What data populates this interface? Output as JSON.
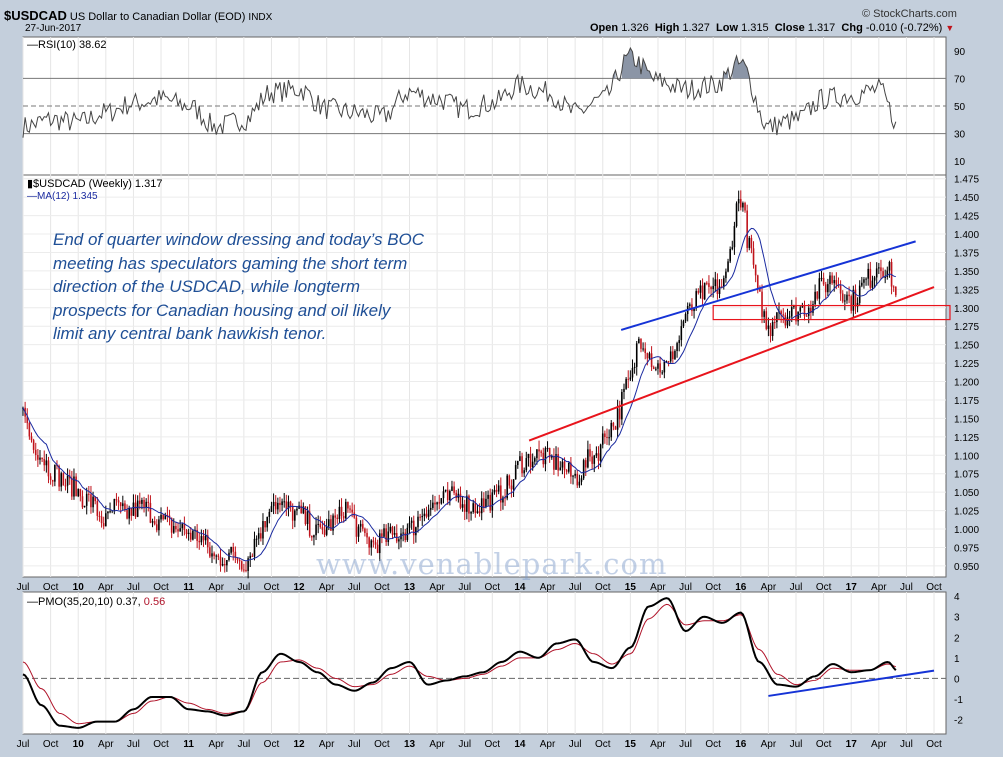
{
  "header": {
    "symbol": "$USDCAD",
    "description": "US Dollar to Canadian Dollar (EOD)",
    "exchange": "INDX",
    "date": "27-Jun-2017",
    "brand": "© StockCharts.com",
    "ohlc": {
      "open_label": "Open",
      "open": "1.326",
      "high_label": "High",
      "high": "1.327",
      "low_label": "Low",
      "low": "1.315",
      "close_label": "Close",
      "close": "1.317",
      "chg_label": "Chg",
      "chg": "-0.010 (-0.72%)"
    }
  },
  "annotation": {
    "lines": [
      "End of quarter window dressing and today’s BOC",
      "meeting has speculators gaming the short term",
      "direction of the USDCAD, while longterm",
      "prospects for Canadian housing and oil likely",
      "limit any central bank hawkish tenor."
    ]
  },
  "watermark": "www.venablepark.com",
  "colors": {
    "price_up": "#000000",
    "price_down": "#c0141c",
    "ma_line": "#1a2aa0",
    "trend_red": "#e8141c",
    "trend_blue": "#1533d6",
    "signal": "#b0142a",
    "panel_bg": "#ffffff",
    "overbought_fill": "#8b95a6"
  },
  "chart_data": [
    {
      "panel": "rsi",
      "type": "line",
      "indicator_label": "RSI(10)",
      "indicator_value": "38.62",
      "ylim": [
        0,
        100
      ],
      "y_ticks": [
        "90",
        "70",
        "50",
        "30",
        "10"
      ],
      "reference_lines": [
        70,
        50,
        30
      ],
      "x": [
        "2009-07",
        "2009-10",
        "2010-01",
        "2010-04",
        "2010-07",
        "2010-10",
        "2011-01",
        "2011-04",
        "2011-07",
        "2011-10",
        "2012-01",
        "2012-04",
        "2012-07",
        "2012-10",
        "2013-01",
        "2013-04",
        "2013-07",
        "2013-10",
        "2014-01",
        "2014-04",
        "2014-07",
        "2014-10",
        "2015-01",
        "2015-04",
        "2015-07",
        "2015-10",
        "2016-01",
        "2016-04",
        "2016-07",
        "2016-10",
        "2017-01",
        "2017-04",
        "2017-06"
      ],
      "values": [
        35,
        40,
        38,
        45,
        52,
        55,
        50,
        35,
        40,
        60,
        62,
        48,
        45,
        42,
        60,
        55,
        48,
        52,
        65,
        60,
        45,
        55,
        85,
        68,
        62,
        65,
        80,
        35,
        40,
        55,
        58,
        62,
        38.62
      ]
    },
    {
      "panel": "price",
      "type": "candlestick",
      "series": [
        {
          "name": "$USDCAD (Weekly)",
          "last": "1.317"
        },
        {
          "name": "MA(12)",
          "last": "1.345"
        }
      ],
      "ylim": [
        0.935,
        1.48
      ],
      "y_ticks": [
        "1.475",
        "1.450",
        "1.425",
        "1.400",
        "1.375",
        "1.350",
        "1.325",
        "1.300",
        "1.275",
        "1.250",
        "1.225",
        "1.200",
        "1.175",
        "1.150",
        "1.125",
        "1.100",
        "1.075",
        "1.050",
        "1.025",
        "1.000",
        "0.975",
        "0.950"
      ],
      "x_tick_labels": [
        "Jul",
        "Oct",
        "10",
        "Apr",
        "Jul",
        "Oct",
        "11",
        "Apr",
        "Jul",
        "Oct",
        "12",
        "Apr",
        "Jul",
        "Oct",
        "13",
        "Apr",
        "Jul",
        "Oct",
        "14",
        "Apr",
        "Jul",
        "Oct",
        "15",
        "Apr",
        "Jul",
        "Oct",
        "16",
        "Apr",
        "Jul",
        "Oct",
        "17",
        "Apr",
        "Jul",
        "Oct"
      ],
      "x": [
        "2009-07",
        "2009-08",
        "2009-09",
        "2009-10",
        "2009-12",
        "2010-02",
        "2010-04",
        "2010-05",
        "2010-06",
        "2010-08",
        "2010-10",
        "2010-12",
        "2011-02",
        "2011-04",
        "2011-06",
        "2011-07",
        "2011-09",
        "2011-10",
        "2011-11",
        "2012-01",
        "2012-03",
        "2012-05",
        "2012-06",
        "2012-08",
        "2012-09",
        "2012-11",
        "2013-01",
        "2013-03",
        "2013-05",
        "2013-06",
        "2013-08",
        "2013-10",
        "2013-12",
        "2014-01",
        "2014-03",
        "2014-05",
        "2014-07",
        "2014-09",
        "2014-11",
        "2015-01",
        "2015-02",
        "2015-04",
        "2015-05",
        "2015-06",
        "2015-07",
        "2015-09",
        "2015-11",
        "2016-01",
        "2016-02",
        "2016-03",
        "2016-04",
        "2016-05",
        "2016-06",
        "2016-08",
        "2016-10",
        "2016-11",
        "2017-01",
        "2017-03",
        "2017-04",
        "2017-05",
        "2017-06"
      ],
      "close": [
        1.16,
        1.12,
        1.1,
        1.08,
        1.06,
        1.04,
        1.01,
        1.03,
        1.02,
        1.03,
        1.01,
        1.0,
        0.99,
        0.96,
        0.965,
        0.955,
        1.0,
        1.04,
        1.03,
        1.02,
        0.995,
        1.01,
        1.03,
        0.99,
        0.98,
        0.99,
        1.0,
        1.03,
        1.04,
        1.045,
        1.03,
        1.04,
        1.06,
        1.09,
        1.1,
        1.09,
        1.07,
        1.1,
        1.14,
        1.2,
        1.26,
        1.22,
        1.22,
        1.25,
        1.29,
        1.32,
        1.33,
        1.45,
        1.38,
        1.31,
        1.27,
        1.3,
        1.29,
        1.3,
        1.33,
        1.34,
        1.31,
        1.34,
        1.36,
        1.35,
        1.317
      ],
      "annotations": [
        {
          "type": "trendline",
          "color": "red",
          "from": [
            "2014-02",
            1.12
          ],
          "to": [
            "2017-10",
            1.328
          ]
        },
        {
          "type": "trendline",
          "color": "blue",
          "from": [
            "2014-12",
            1.27
          ],
          "to": [
            "2017-08",
            1.39
          ]
        },
        {
          "type": "support_zone",
          "color": "red",
          "from_date": "2015-10",
          "y_range": [
            1.284,
            1.303
          ]
        }
      ]
    },
    {
      "panel": "pmo",
      "type": "line",
      "indicator_label": "PMO(35,20,10)",
      "indicator_value": "0.37",
      "signal_value": "0.56",
      "ylim": [
        -2.7,
        4.2
      ],
      "y_ticks": [
        "4",
        "3",
        "2",
        "1",
        "0",
        "-1",
        "-2"
      ],
      "x_tick_labels": [
        "Jul",
        "Oct",
        "10",
        "Apr",
        "Jul",
        "Oct",
        "11",
        "Apr",
        "Jul",
        "Oct",
        "12",
        "Apr",
        "Jul",
        "Oct",
        "13",
        "Apr",
        "Jul",
        "Oct",
        "14",
        "Apr",
        "Jul",
        "Oct",
        "15",
        "Apr",
        "Jul",
        "Oct",
        "16",
        "Apr",
        "Jul",
        "Oct",
        "17",
        "Apr",
        "Jul",
        "Oct"
      ],
      "x": [
        "2009-07",
        "2009-09",
        "2009-11",
        "2010-01",
        "2010-03",
        "2010-05",
        "2010-07",
        "2010-09",
        "2010-11",
        "2011-01",
        "2011-03",
        "2011-05",
        "2011-07",
        "2011-09",
        "2011-11",
        "2012-01",
        "2012-03",
        "2012-05",
        "2012-07",
        "2012-09",
        "2012-11",
        "2013-01",
        "2013-03",
        "2013-05",
        "2013-07",
        "2013-09",
        "2013-11",
        "2014-01",
        "2014-03",
        "2014-05",
        "2014-07",
        "2014-09",
        "2014-11",
        "2015-01",
        "2015-03",
        "2015-05",
        "2015-07",
        "2015-09",
        "2015-11",
        "2016-01",
        "2016-03",
        "2016-05",
        "2016-07",
        "2016-09",
        "2016-11",
        "2017-01",
        "2017-03",
        "2017-05",
        "2017-06"
      ],
      "values": [
        0.2,
        -1.3,
        -2.3,
        -2.4,
        -2.1,
        -2.1,
        -1.5,
        -0.9,
        -0.9,
        -1.5,
        -1.6,
        -1.8,
        -1.6,
        0.3,
        1.2,
        0.8,
        0.3,
        -0.3,
        -0.6,
        -0.2,
        0.5,
        0.8,
        -0.3,
        -0.1,
        0.1,
        0.3,
        0.8,
        1.3,
        1.0,
        1.7,
        1.9,
        0.8,
        0.5,
        1.5,
        3.5,
        3.9,
        2.3,
        3.0,
        2.7,
        3.2,
        0.8,
        -0.3,
        -0.4,
        0.1,
        0.7,
        0.3,
        0.4,
        0.8,
        0.37
      ],
      "signal": [
        0.8,
        -0.5,
        -1.7,
        -2.2,
        -2.1,
        -2.1,
        -1.7,
        -1.1,
        -0.9,
        -1.2,
        -1.5,
        -1.7,
        -1.6,
        -0.2,
        0.8,
        0.9,
        0.5,
        0.0,
        -0.4,
        -0.3,
        0.2,
        0.6,
        0.1,
        -0.1,
        0.0,
        0.2,
        0.6,
        1.0,
        1.0,
        1.4,
        1.7,
        1.2,
        0.7,
        1.2,
        2.9,
        3.6,
        2.6,
        2.8,
        2.8,
        3.1,
        1.4,
        0.2,
        -0.3,
        -0.1,
        0.5,
        0.4,
        0.4,
        0.7,
        0.56
      ],
      "annotations": [
        {
          "type": "trendline",
          "color": "blue",
          "from": [
            "2016-04",
            -0.85
          ],
          "to": [
            "2017-10",
            0.38
          ]
        }
      ]
    }
  ]
}
